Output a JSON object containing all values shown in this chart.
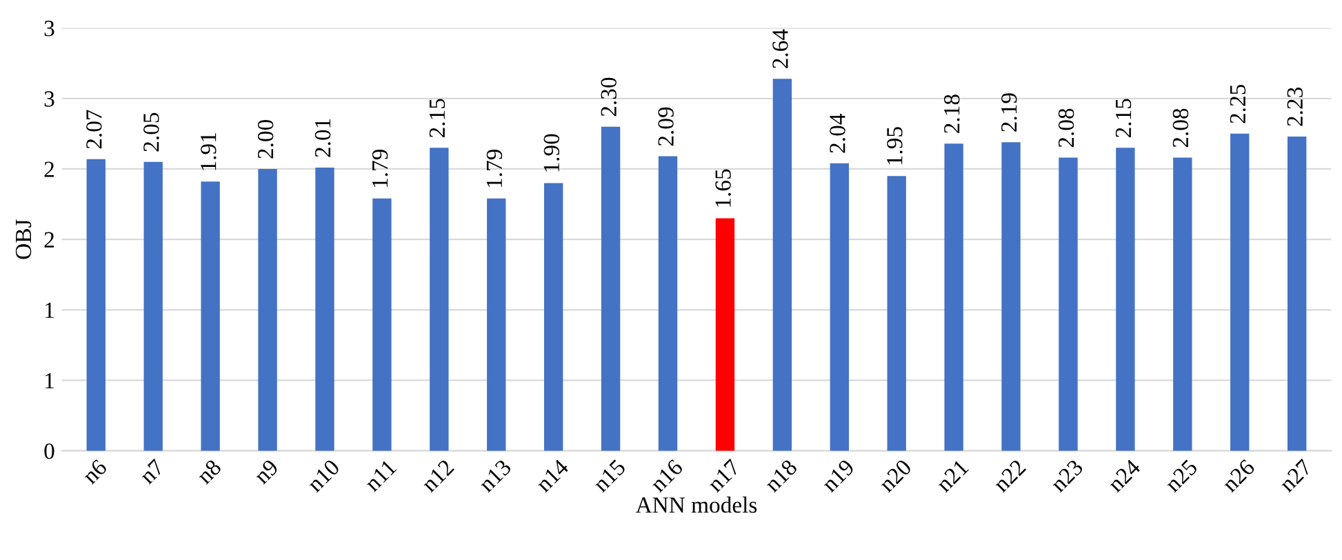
{
  "chart_data": {
    "type": "bar",
    "xlabel": "ANN models",
    "ylabel": "OBJ",
    "categories": [
      "n6",
      "n7",
      "n8",
      "n9",
      "n10",
      "n11",
      "n12",
      "n13",
      "n14",
      "n15",
      "n16",
      "n17",
      "n18",
      "n19",
      "n20",
      "n21",
      "n22",
      "n23",
      "n24",
      "n25",
      "n26",
      "n27"
    ],
    "values": [
      2.07,
      2.05,
      1.91,
      2.0,
      2.01,
      1.79,
      2.15,
      1.79,
      1.9,
      2.3,
      2.09,
      1.65,
      2.64,
      2.04,
      1.95,
      2.18,
      2.19,
      2.08,
      2.15,
      2.08,
      2.25,
      2.23
    ],
    "value_labels": [
      "2.07",
      "2.05",
      "1.91",
      "2.00",
      "2.01",
      "1.79",
      "2.15",
      "1.79",
      "1.90",
      "2.30",
      "2.09",
      "1.65",
      "2.64",
      "2.04",
      "1.95",
      "2.18",
      "2.19",
      "2.08",
      "2.15",
      "2.08",
      "2.25",
      "2.23"
    ],
    "colors": [
      "#4472c4",
      "#4472c4",
      "#4472c4",
      "#4472c4",
      "#4472c4",
      "#4472c4",
      "#4472c4",
      "#4472c4",
      "#4472c4",
      "#4472c4",
      "#4472c4",
      "#ff0000",
      "#4472c4",
      "#4472c4",
      "#4472c4",
      "#4472c4",
      "#4472c4",
      "#4472c4",
      "#4472c4",
      "#4472c4",
      "#4472c4",
      "#4472c4"
    ],
    "ylim": [
      0,
      3
    ],
    "yticks": [
      0,
      {
        "value": 0.5,
        "label": "1"
      },
      1,
      {
        "value": 1.5,
        "label": "2"
      },
      2,
      {
        "value": 2.5,
        "label": "3"
      },
      3
    ],
    "grid": "y"
  }
}
